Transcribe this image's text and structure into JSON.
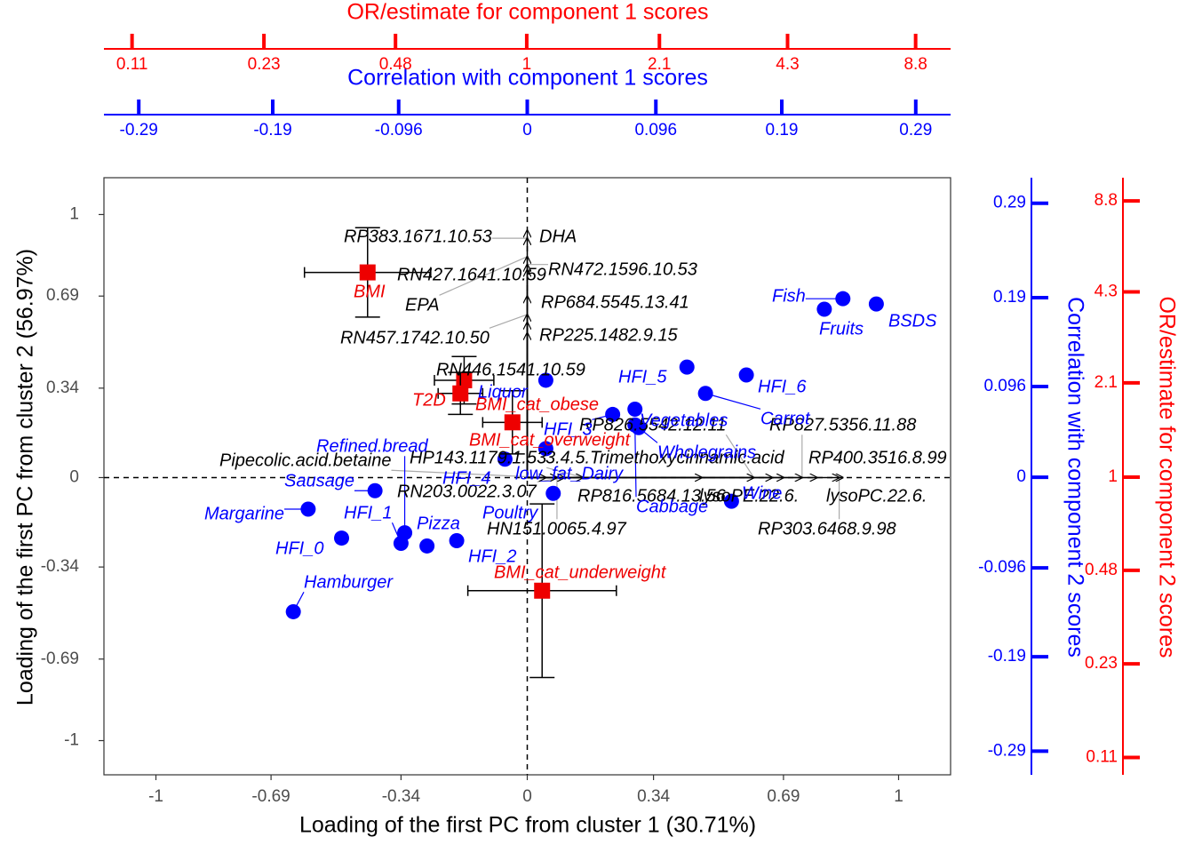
{
  "chart_data": {
    "type": "biplot",
    "xlabel": "Loading of the first PC from cluster 1 (30.71%)",
    "ylabel": "Loading of the first PC from cluster 2 (56.97%)",
    "xlim": [
      -1.14,
      1.14
    ],
    "ylim": [
      -1.13,
      1.14
    ],
    "xticks": [
      -1,
      -0.69,
      -0.34,
      0,
      0.34,
      0.69,
      1
    ],
    "yticks": [
      -1,
      -0.69,
      -0.34,
      0,
      0.34,
      0.69,
      1
    ],
    "secondary_axes": [
      {
        "position": "top",
        "title": "Correlation with component 1 scores",
        "color": "#0000ff",
        "scale": "linear",
        "lim": [
          -0.316,
          0.316
        ],
        "ticks": [
          -0.29,
          -0.19,
          -0.096,
          0,
          0.096,
          0.19,
          0.29
        ]
      },
      {
        "position": "top",
        "title": "OR/estimate for component 1 scores",
        "color": "#ff0000",
        "scale": "log",
        "lim": [
          0.094,
          10.7
        ],
        "ticks": [
          0.11,
          0.23,
          0.48,
          1,
          2.1,
          4.3,
          8.8
        ]
      },
      {
        "position": "right",
        "title": "Correlation with component 2 scores",
        "color": "#0000ff",
        "scale": "linear",
        "lim": [
          -0.315,
          0.317
        ],
        "ticks": [
          -0.29,
          -0.19,
          -0.096,
          0,
          0.096,
          0.19,
          0.29
        ]
      },
      {
        "position": "right",
        "title": "OR/estimate for component 2 scores",
        "color": "#ff0000",
        "scale": "log",
        "lim": [
          0.096,
          10.56
        ],
        "ticks": [
          0.11,
          0.23,
          0.48,
          1,
          2.1,
          4.3,
          8.8
        ]
      }
    ],
    "points": {
      "color": "#0000ff",
      "labels": [
        "Fish",
        "Fruits",
        "BSDS",
        "HFI_5",
        "HFI_6",
        "Carrot",
        "Liquor",
        "Vegetables",
        "HFI_3",
        "Wholegrains",
        "Cabbage",
        "low_fat_Dairy",
        "HFI_4",
        "Refined.bread",
        "HFI_1",
        "Pizza",
        "HFI_2",
        "HFI_0",
        "Margarine",
        "Hamburger",
        "Sausage",
        "Poultry",
        "Wine"
      ],
      "x": [
        0.85,
        0.8,
        0.94,
        0.43,
        0.59,
        0.48,
        0.05,
        0.29,
        0.23,
        0.3,
        0.29,
        0.05,
        -0.06,
        -0.33,
        -0.34,
        -0.27,
        -0.19,
        -0.5,
        -0.59,
        -0.63,
        -0.41,
        0.07,
        0.55
      ],
      "y": [
        0.68,
        0.64,
        0.66,
        0.42,
        0.39,
        0.32,
        0.37,
        0.26,
        0.24,
        0.19,
        0.2,
        0.11,
        0.07,
        -0.21,
        -0.25,
        -0.26,
        -0.24,
        -0.23,
        -0.12,
        -0.51,
        -0.05,
        -0.06,
        -0.09
      ]
    },
    "outcomes": {
      "color": "#ee0000",
      "labels": [
        "BMI",
        "BMI_cat_obese",
        "T2D",
        "BMI_cat_overweight",
        "BMI_cat_underweight"
      ],
      "x": [
        -0.43,
        -0.17,
        -0.18,
        -0.04,
        0.04
      ],
      "y": [
        0.78,
        0.37,
        0.32,
        0.21,
        -0.43
      ],
      "xerr": [
        0.17,
        0.08,
        0.06,
        0.08,
        0.2
      ],
      "yerr": [
        0.17,
        0.09,
        0.08,
        0.12,
        0.33
      ]
    },
    "vectors": {
      "color": "#000000",
      "labels": [
        "DHA",
        "RP383.1671.10.53",
        "EPA",
        "RN472.1596.10.53",
        "RN427.1641.10.59",
        "RP684.5545.13.41",
        "RP225.1482.9.15",
        "RN457.1742.10.50",
        "RN446.1541.10.59",
        "lysoPC.22.6.",
        "RP303.6468.9.98",
        "RP400.3516.8.99",
        "RP827.5356.11.88",
        "lysoPE.22.6.",
        "3.4.5.Trimethoxycinnamic.acid",
        "RP826.5542.12.11",
        "RP816.5684.13.56",
        "HP143.1179.1.53",
        "RN203.0022.3.07",
        "HN151.0065.4.97",
        "Pipecolic.acid.betaine"
      ],
      "x": [
        0,
        0,
        0,
        0,
        0,
        0,
        0,
        0,
        0,
        0.85,
        0.84,
        0.78,
        0.74,
        0.69,
        0.66,
        0.61,
        0.47,
        0.15,
        0.1,
        0.08,
        0.05
      ],
      "y": [
        0.94,
        0.91,
        0.84,
        0.81,
        0.79,
        0.69,
        0.59,
        0.62,
        0.55,
        0,
        0,
        0,
        0,
        0,
        0,
        0,
        0,
        0,
        0,
        0,
        0
      ]
    }
  }
}
